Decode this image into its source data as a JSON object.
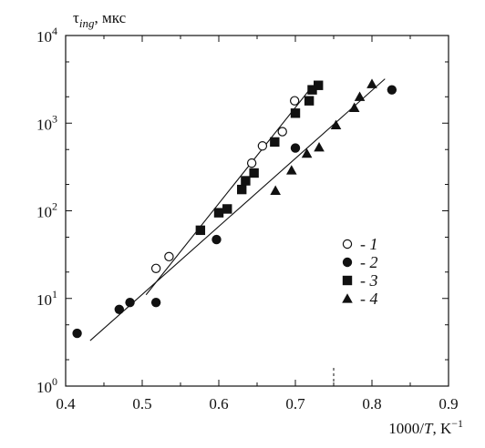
{
  "chart_data": {
    "type": "scatter",
    "x_scale": "linear",
    "y_scale": "log",
    "xlim": [
      0.4,
      0.9
    ],
    "ylim": [
      1,
      10000
    ],
    "x_ticks": [
      0.4,
      0.5,
      0.6,
      0.7,
      0.8,
      0.9
    ],
    "x_tick_labels": [
      "0.4",
      "0.5",
      "0.6",
      "0.7",
      "0.8",
      "0.9"
    ],
    "y_ticks": [
      {
        "value": 1,
        "base": "10",
        "exp": "0"
      },
      {
        "value": 10,
        "base": "10",
        "exp": "1"
      },
      {
        "value": 100,
        "base": "10",
        "exp": "2"
      },
      {
        "value": 1000,
        "base": "10",
        "exp": "3"
      },
      {
        "value": 10000,
        "base": "10",
        "exp": "4"
      }
    ],
    "ylabel": {
      "sym": "τ",
      "sub": "ing",
      "unit": ", мкс"
    },
    "xlabel": {
      "pre": "1000/",
      "var": "T",
      "unit": ", K",
      "sup": "−1"
    },
    "dashed_marker_x": 0.75,
    "legend_position": "center-right",
    "series": [
      {
        "name": "1",
        "marker": "open-circle",
        "x": [
          0.518,
          0.535,
          0.643,
          0.657,
          0.683,
          0.699
        ],
        "y": [
          22,
          30,
          350,
          550,
          800,
          1800
        ]
      },
      {
        "name": "2",
        "marker": "filled-circle",
        "x": [
          0.415,
          0.47,
          0.484,
          0.518,
          0.597,
          0.7,
          0.826
        ],
        "y": [
          4,
          7.5,
          9,
          9,
          47,
          520,
          2400
        ]
      },
      {
        "name": "3",
        "marker": "filled-square",
        "x": [
          0.576,
          0.6,
          0.611,
          0.63,
          0.635,
          0.646,
          0.673,
          0.7,
          0.718,
          0.722,
          0.73
        ],
        "y": [
          60,
          95,
          105,
          175,
          220,
          270,
          610,
          1300,
          1800,
          2400,
          2700
        ]
      },
      {
        "name": "4",
        "marker": "filled-triangle",
        "x": [
          0.674,
          0.695,
          0.715,
          0.731,
          0.753,
          0.777,
          0.784,
          0.8
        ],
        "y": [
          170,
          290,
          450,
          530,
          950,
          1500,
          2000,
          2800
        ]
      }
    ],
    "fit_lines": [
      {
        "name": "fit-1-3",
        "x": [
          0.505,
          0.723
        ],
        "y": [
          11,
          2700
        ]
      },
      {
        "name": "fit-2-4",
        "x": [
          0.432,
          0.817
        ],
        "y": [
          3.3,
          3200
        ]
      }
    ],
    "grid": false
  }
}
